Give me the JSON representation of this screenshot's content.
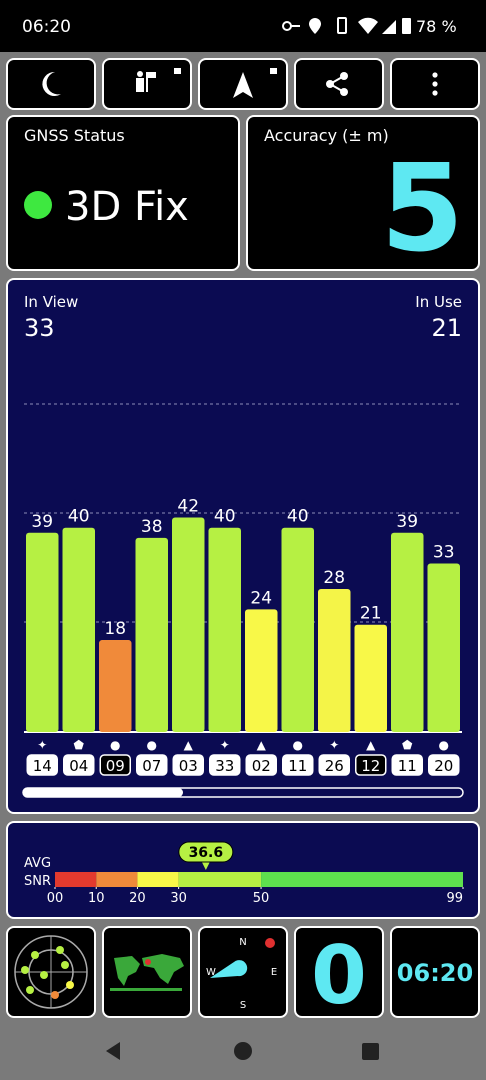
{
  "status_bar": {
    "time": "06:20",
    "battery": "78 %"
  },
  "gnss_status": {
    "label": "GNSS Status",
    "value": "3D Fix"
  },
  "accuracy": {
    "label": "Accuracy (± m)",
    "value": 5
  },
  "satellites": {
    "in_view_label": "In View",
    "in_view": 33,
    "in_use_label": "In Use",
    "in_use": 21,
    "ylim": [
      0,
      65
    ],
    "bars": [
      {
        "id": "14",
        "snr": 39,
        "symbol": "✦",
        "used": true,
        "color": "#b6f043"
      },
      {
        "id": "04",
        "snr": 40,
        "symbol": "⬟",
        "used": true,
        "color": "#b6f043"
      },
      {
        "id": "09",
        "snr": 18,
        "symbol": "●",
        "used": false,
        "color": "#f08a3a"
      },
      {
        "id": "07",
        "snr": 38,
        "symbol": "●",
        "used": true,
        "color": "#b6f043"
      },
      {
        "id": "03",
        "snr": 42,
        "symbol": "▲",
        "used": true,
        "color": "#b6f043"
      },
      {
        "id": "33",
        "snr": 40,
        "symbol": "✦",
        "used": true,
        "color": "#b6f043"
      },
      {
        "id": "02",
        "snr": 24,
        "symbol": "▲",
        "used": true,
        "color": "#f8f848"
      },
      {
        "id": "11",
        "snr": 40,
        "symbol": "●",
        "used": true,
        "color": "#b6f043"
      },
      {
        "id": "26",
        "snr": 28,
        "symbol": "✦",
        "used": true,
        "color": "#f4f448"
      },
      {
        "id": "12",
        "snr": 21,
        "symbol": "▲",
        "used": false,
        "color": "#f8f848"
      },
      {
        "id": "11",
        "snr": 39,
        "symbol": "⬟",
        "used": true,
        "color": "#b6f043"
      },
      {
        "id": "20",
        "snr": 33,
        "symbol": "●",
        "used": true,
        "color": "#b6f043"
      }
    ]
  },
  "snr_scale": {
    "avg_label": "AVG",
    "snr_label": "SNR",
    "avg": 36.6,
    "xlim": [
      0,
      99
    ],
    "xticks": [
      {
        "value": 0,
        "label": "00"
      },
      10,
      20,
      30,
      50,
      99
    ],
    "colors": [
      "#e33a2e",
      "#f08a3a",
      "#f8f848",
      "#b6f043",
      "#5ee04e"
    ]
  },
  "bottom_tiles": {
    "count": "0",
    "clock": "06:20"
  }
}
